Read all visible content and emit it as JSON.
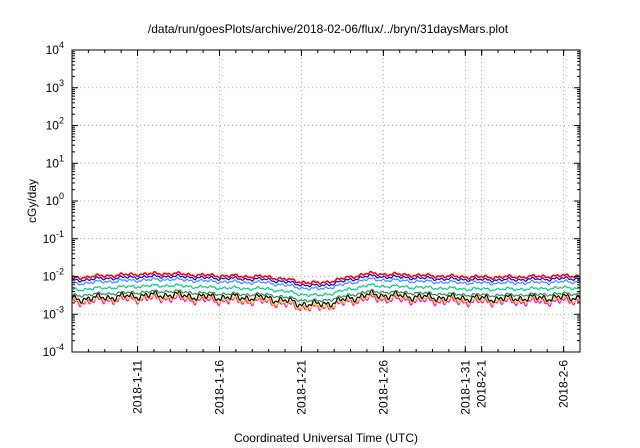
{
  "chart_data": {
    "type": "line",
    "title": "/data/run/goesPlots/archive/2018-02-06/flux/../bryn/31daysMars.plot",
    "xlabel": "Coordinated Universal Time (UTC)",
    "ylabel": "cGy/day",
    "y_scale": "log",
    "ylim": [
      0.0001,
      10000
    ],
    "xlim": [
      "2018-01-07",
      "2018-02-07"
    ],
    "grid": true,
    "y_ticks": [
      {
        "base": "10",
        "exp": "-4"
      },
      {
        "base": "10",
        "exp": "-3"
      },
      {
        "base": "10",
        "exp": "-2"
      },
      {
        "base": "10",
        "exp": "-1"
      },
      {
        "base": "10",
        "exp": "0"
      },
      {
        "base": "10",
        "exp": "1"
      },
      {
        "base": "10",
        "exp": "2"
      },
      {
        "base": "10",
        "exp": "3"
      },
      {
        "base": "10",
        "exp": "4"
      }
    ],
    "x_ticks": [
      "2018-1-11",
      "2018-1-16",
      "2018-1-21",
      "2018-1-26",
      "2018-1-31",
      "2018-2-1",
      "2018-2-6"
    ],
    "x_tick_dates": [
      "2018-01-11",
      "2018-01-16",
      "2018-01-21",
      "2018-01-26",
      "2018-01-31",
      "2018-02-01",
      "2018-02-06"
    ],
    "x": [
      "2018-01-07",
      "2018-01-09",
      "2018-01-11",
      "2018-01-13",
      "2018-01-15",
      "2018-01-17",
      "2018-01-19",
      "2018-01-21",
      "2018-01-22",
      "2018-01-23",
      "2018-01-25",
      "2018-01-27",
      "2018-01-29",
      "2018-01-31",
      "2018-02-02",
      "2018-02-04",
      "2018-02-06",
      "2018-02-07"
    ],
    "series": [
      {
        "color": "#ff0000",
        "values": [
          0.0092,
          0.0105,
          0.0115,
          0.012,
          0.0108,
          0.0102,
          0.0098,
          0.0072,
          0.0066,
          0.0078,
          0.012,
          0.0112,
          0.0104,
          0.0098,
          0.0096,
          0.0099,
          0.0104,
          0.0105
        ]
      },
      {
        "color": "#0000ff",
        "values": [
          0.0078,
          0.0089,
          0.0097,
          0.0102,
          0.0092,
          0.0087,
          0.0083,
          0.0061,
          0.0056,
          0.0066,
          0.0102,
          0.0095,
          0.0088,
          0.0083,
          0.0081,
          0.0084,
          0.0088,
          0.0089
        ]
      },
      {
        "color": "#4488ff",
        "values": [
          0.0064,
          0.0073,
          0.008,
          0.0084,
          0.0076,
          0.0071,
          0.0068,
          0.005,
          0.0046,
          0.0054,
          0.0084,
          0.0078,
          0.0072,
          0.0068,
          0.0067,
          0.0069,
          0.0072,
          0.0073
        ]
      },
      {
        "color": "#00cc88",
        "values": [
          0.0044,
          0.005,
          0.0055,
          0.0058,
          0.0052,
          0.0049,
          0.0047,
          0.0034,
          0.0031,
          0.0037,
          0.0058,
          0.0054,
          0.005,
          0.0047,
          0.0046,
          0.0047,
          0.005,
          0.005
        ]
      },
      {
        "color": "#2e8b57",
        "values": [
          0.0031,
          0.0035,
          0.0038,
          0.0041,
          0.0036,
          0.0034,
          0.0033,
          0.0024,
          0.0022,
          0.0026,
          0.004,
          0.0038,
          0.0035,
          0.0033,
          0.0032,
          0.0033,
          0.0035,
          0.0035
        ]
      },
      {
        "color": "#000000",
        "values": [
          0.0025,
          0.0028,
          0.0031,
          0.0033,
          0.0029,
          0.0028,
          0.0027,
          0.0019,
          0.0018,
          0.0021,
          0.0033,
          0.0031,
          0.0028,
          0.0027,
          0.0026,
          0.0027,
          0.0028,
          0.0029
        ]
      },
      {
        "color": "#ffcc00",
        "values": [
          0.0022,
          0.0025,
          0.0027,
          0.0029,
          0.0026,
          0.0024,
          0.0023,
          0.0016,
          0.0015,
          0.0018,
          0.0029,
          0.0027,
          0.0025,
          0.0023,
          0.0023,
          0.0024,
          0.0025,
          0.0025
        ]
      },
      {
        "color": "#ff00ff",
        "values": [
          0.002,
          0.0023,
          0.0025,
          0.0026,
          0.0023,
          0.0022,
          0.0021,
          0.0015,
          0.0014,
          0.0017,
          0.0026,
          0.0024,
          0.0022,
          0.0021,
          0.0021,
          0.0021,
          0.0022,
          0.0023
        ]
      }
    ]
  }
}
